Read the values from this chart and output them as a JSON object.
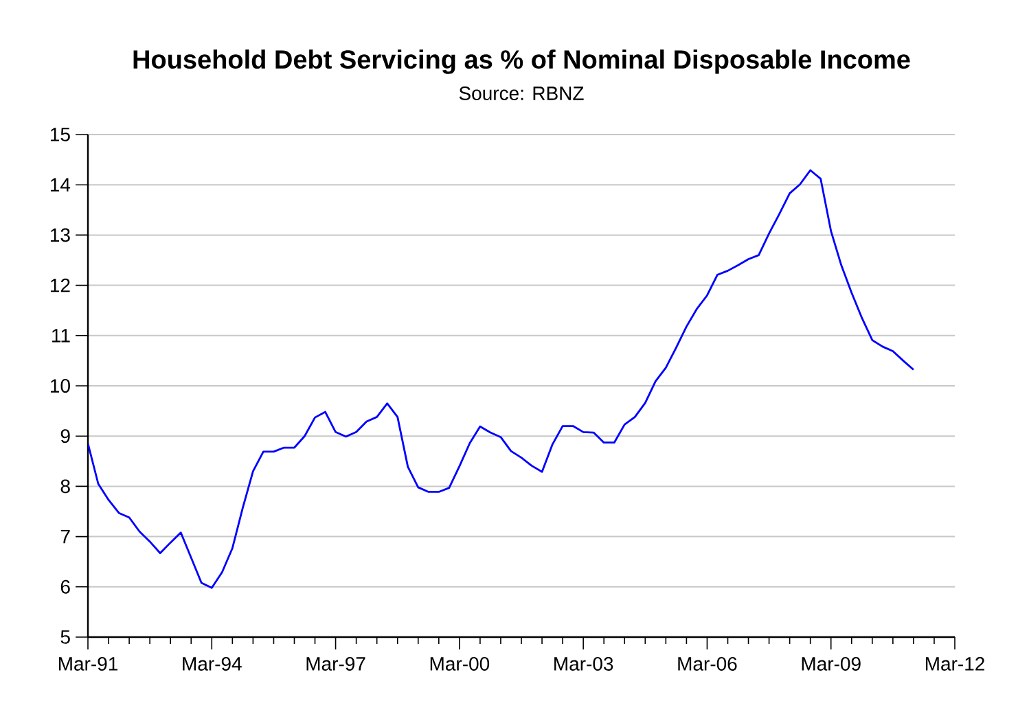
{
  "chart_data": {
    "type": "line",
    "title": "Household Debt Servicing as % of Nominal Disposable Income",
    "subtitle": "Source: RBNZ",
    "x": [
      "1991-03",
      "1991-06",
      "1991-09",
      "1991-12",
      "1992-03",
      "1992-06",
      "1992-09",
      "1992-12",
      "1993-03",
      "1993-06",
      "1993-09",
      "1993-12",
      "1994-03",
      "1994-06",
      "1994-09",
      "1994-12",
      "1995-03",
      "1995-06",
      "1995-09",
      "1995-12",
      "1996-03",
      "1996-06",
      "1996-09",
      "1996-12",
      "1997-03",
      "1997-06",
      "1997-09",
      "1997-12",
      "1998-03",
      "1998-06",
      "1998-09",
      "1998-12",
      "1999-03",
      "1999-06",
      "1999-09",
      "1999-12",
      "2000-03",
      "2000-06",
      "2000-09",
      "2000-12",
      "2001-03",
      "2001-06",
      "2001-09",
      "2001-12",
      "2002-03",
      "2002-06",
      "2002-09",
      "2002-12",
      "2003-03",
      "2003-06",
      "2003-09",
      "2003-12",
      "2004-03",
      "2004-06",
      "2004-09",
      "2004-12",
      "2005-03",
      "2005-06",
      "2005-09",
      "2005-12",
      "2006-03",
      "2006-06",
      "2006-09",
      "2006-12",
      "2007-03",
      "2007-06",
      "2007-09",
      "2007-12",
      "2008-03",
      "2008-06",
      "2008-09",
      "2008-12",
      "2009-03",
      "2009-06",
      "2009-09",
      "2009-12",
      "2010-03",
      "2010-06",
      "2010-09",
      "2010-12",
      "2011-03"
    ],
    "series": [
      {
        "color": "#0000ff",
        "values": [
          8.85,
          8.05,
          7.73,
          7.47,
          7.38,
          7.1,
          6.9,
          6.67,
          6.88,
          7.08,
          6.58,
          6.08,
          5.98,
          6.29,
          6.77,
          7.57,
          8.3,
          8.69,
          8.69,
          8.77,
          8.77,
          9.0,
          9.37,
          9.48,
          9.08,
          8.99,
          9.08,
          9.29,
          9.38,
          9.65,
          9.38,
          8.39,
          7.98,
          7.89,
          7.89,
          7.97,
          8.4,
          8.86,
          9.19,
          9.07,
          8.98,
          8.7,
          8.57,
          8.41,
          8.29,
          8.83,
          9.2,
          9.2,
          9.08,
          9.07,
          8.87,
          8.87,
          9.23,
          9.38,
          9.66,
          10.09,
          10.36,
          10.76,
          11.18,
          11.53,
          11.8,
          12.21,
          12.29,
          12.4,
          12.52,
          12.6,
          13.03,
          13.42,
          13.83,
          14.01,
          14.29,
          14.12,
          13.08,
          12.4,
          11.85,
          11.35,
          10.91,
          10.78,
          10.69,
          10.5,
          10.32
        ]
      }
    ],
    "xlim": [
      "1991-03",
      "2012-03"
    ],
    "xticks": [
      {
        "value": "1991-03",
        "label": "Mar-91"
      },
      {
        "value": "1991-09",
        "label": null
      },
      {
        "value": "1992-03",
        "label": null
      },
      {
        "value": "1992-09",
        "label": null
      },
      {
        "value": "1993-03",
        "label": null
      },
      {
        "value": "1993-09",
        "label": null
      },
      {
        "value": "1994-03",
        "label": "Mar-94"
      },
      {
        "value": "1994-09",
        "label": null
      },
      {
        "value": "1995-03",
        "label": null
      },
      {
        "value": "1995-09",
        "label": null
      },
      {
        "value": "1996-03",
        "label": null
      },
      {
        "value": "1996-09",
        "label": null
      },
      {
        "value": "1997-03",
        "label": "Mar-97"
      },
      {
        "value": "1997-09",
        "label": null
      },
      {
        "value": "1998-03",
        "label": null
      },
      {
        "value": "1998-09",
        "label": null
      },
      {
        "value": "1999-03",
        "label": null
      },
      {
        "value": "1999-09",
        "label": null
      },
      {
        "value": "2000-03",
        "label": "Mar-00"
      },
      {
        "value": "2000-09",
        "label": null
      },
      {
        "value": "2001-03",
        "label": null
      },
      {
        "value": "2001-09",
        "label": null
      },
      {
        "value": "2002-03",
        "label": null
      },
      {
        "value": "2002-09",
        "label": null
      },
      {
        "value": "2003-03",
        "label": "Mar-03"
      },
      {
        "value": "2003-09",
        "label": null
      },
      {
        "value": "2004-03",
        "label": null
      },
      {
        "value": "2004-09",
        "label": null
      },
      {
        "value": "2005-03",
        "label": null
      },
      {
        "value": "2005-09",
        "label": null
      },
      {
        "value": "2006-03",
        "label": "Mar-06"
      },
      {
        "value": "2006-09",
        "label": null
      },
      {
        "value": "2007-03",
        "label": null
      },
      {
        "value": "2007-09",
        "label": null
      },
      {
        "value": "2008-03",
        "label": null
      },
      {
        "value": "2008-09",
        "label": null
      },
      {
        "value": "2009-03",
        "label": "Mar-09"
      },
      {
        "value": "2009-09",
        "label": null
      },
      {
        "value": "2010-03",
        "label": null
      },
      {
        "value": "2010-09",
        "label": null
      },
      {
        "value": "2011-03",
        "label": null
      },
      {
        "value": "2011-09",
        "label": null
      },
      {
        "value": "2012-03",
        "label": "Mar-12"
      }
    ],
    "ylim": [
      5,
      15
    ],
    "yticks": [
      5,
      6,
      7,
      8,
      9,
      10,
      11,
      12,
      13,
      14,
      15
    ],
    "grid": "y",
    "marker": "none",
    "line_style": "solid"
  }
}
